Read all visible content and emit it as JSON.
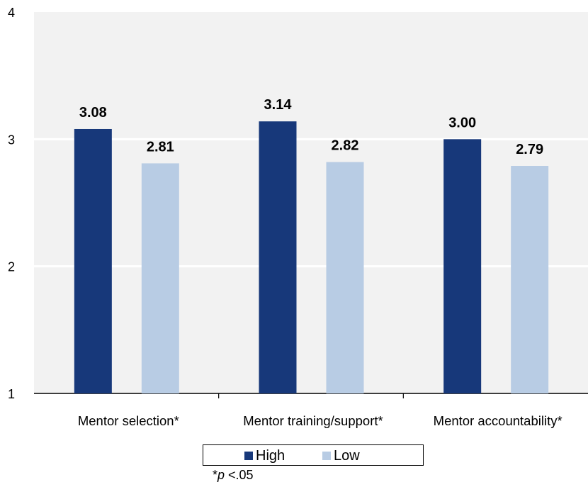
{
  "chart_data": {
    "type": "bar",
    "categories": [
      "Mentor selection*",
      "Mentor training/support*",
      "Mentor accountability*"
    ],
    "series": [
      {
        "name": "High",
        "values": [
          3.08,
          3.14,
          3.0
        ],
        "labels": [
          "3.08",
          "3.14",
          "3.00"
        ],
        "color": "#17387a"
      },
      {
        "name": "Low",
        "values": [
          2.81,
          2.82,
          2.79
        ],
        "labels": [
          "2.81",
          "2.82",
          "2.79"
        ],
        "color": "#b8cce4"
      }
    ],
    "ylim": [
      1,
      4
    ],
    "yticks": [
      "1",
      "2",
      "3",
      "4"
    ],
    "grid": true,
    "plot_background": "#f2f2f2",
    "legend_position": "bottom"
  },
  "legend": {
    "high_label": "High",
    "low_label": "Low"
  },
  "footnote": {
    "prefix": "*",
    "italic": "p",
    "suffix": " <.05"
  }
}
